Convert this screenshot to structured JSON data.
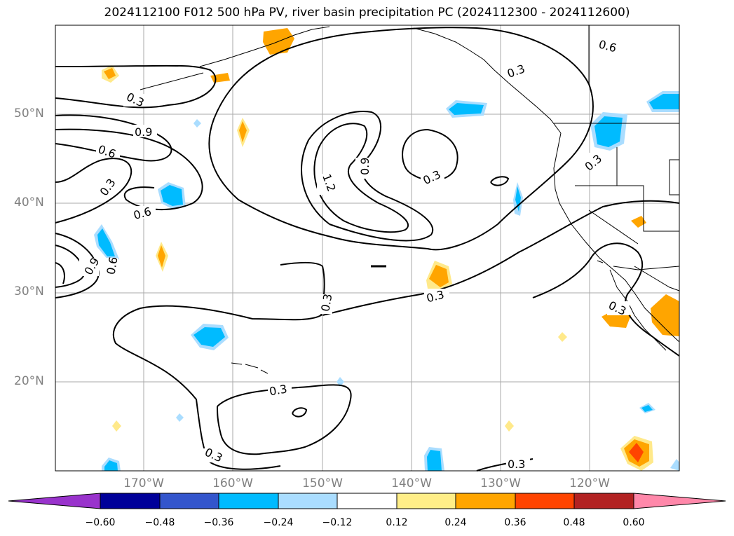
{
  "title": "2024112100 F012 500 hPa PV, river basin precipitation PC (2024112300 - 2024112600)",
  "lat_labels": [
    "50°N",
    "40°N",
    "30°N",
    "20°N"
  ],
  "lon_labels": [
    "170°W",
    "160°W",
    "150°W",
    "140°W",
    "130°W",
    "120°W"
  ],
  "contour_labels": [
    "0.3",
    "0.9",
    "0.6",
    "0.3",
    "0.6",
    "0.9",
    "0.6",
    "1.2",
    "0.9",
    "0.3",
    "0.3",
    "0.3",
    "0.3",
    "0.3",
    "0.3",
    "0.3",
    "0.6",
    "0.3",
    "0.3"
  ],
  "colorbar": {
    "tick_labels": [
      "−0.60",
      "−0.48",
      "−0.36",
      "−0.24",
      "−0.12",
      "0.12",
      "0.24",
      "0.36",
      "0.48",
      "0.60"
    ],
    "colors": [
      "#9933cc",
      "#000099",
      "#3355cc",
      "#00bbff",
      "#aaddff",
      "#ffffff",
      "#ffee88",
      "#ffa500",
      "#ff4400",
      "#b22222",
      "#ff88aa"
    ]
  },
  "colors": {
    "positive": "#ffa500",
    "negative": "#00bbff",
    "grid": "#aaaaaa",
    "land": "#000000"
  }
}
